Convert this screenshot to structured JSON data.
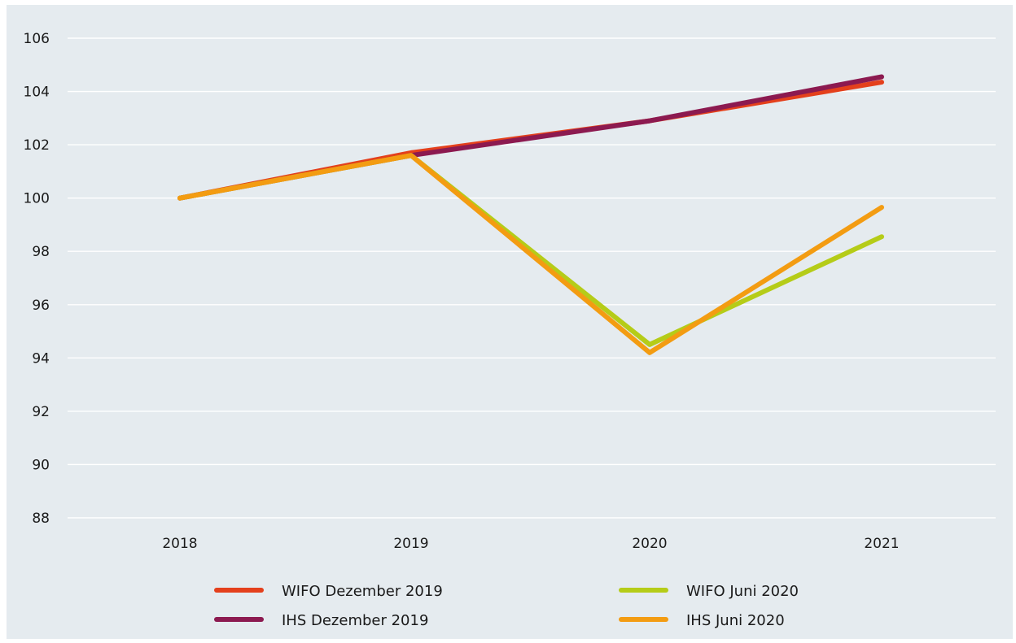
{
  "chart_data": {
    "type": "line",
    "title": "",
    "xlabel": "",
    "ylabel": "",
    "categories": [
      "2018",
      "2019",
      "2020",
      "2021"
    ],
    "ylim": [
      88,
      106
    ],
    "yticks": [
      88,
      90,
      92,
      94,
      96,
      98,
      100,
      102,
      104,
      106
    ],
    "grid": "horizontal",
    "legend_position": "bottom",
    "series": [
      {
        "name": "WIFO Dezember 2019",
        "color": "#e4401c",
        "values": [
          100,
          101.7,
          102.9,
          104.35
        ]
      },
      {
        "name": "IHS Dezember 2019",
        "color": "#8c1a50",
        "values": [
          100,
          101.6,
          102.9,
          104.55
        ]
      },
      {
        "name": "WIFO Juni 2020",
        "color": "#b5cc18",
        "values": [
          100,
          101.6,
          94.5,
          98.55
        ]
      },
      {
        "name": "IHS Juni 2020",
        "color": "#f39c12",
        "values": [
          100,
          101.6,
          94.2,
          99.65
        ]
      }
    ]
  }
}
